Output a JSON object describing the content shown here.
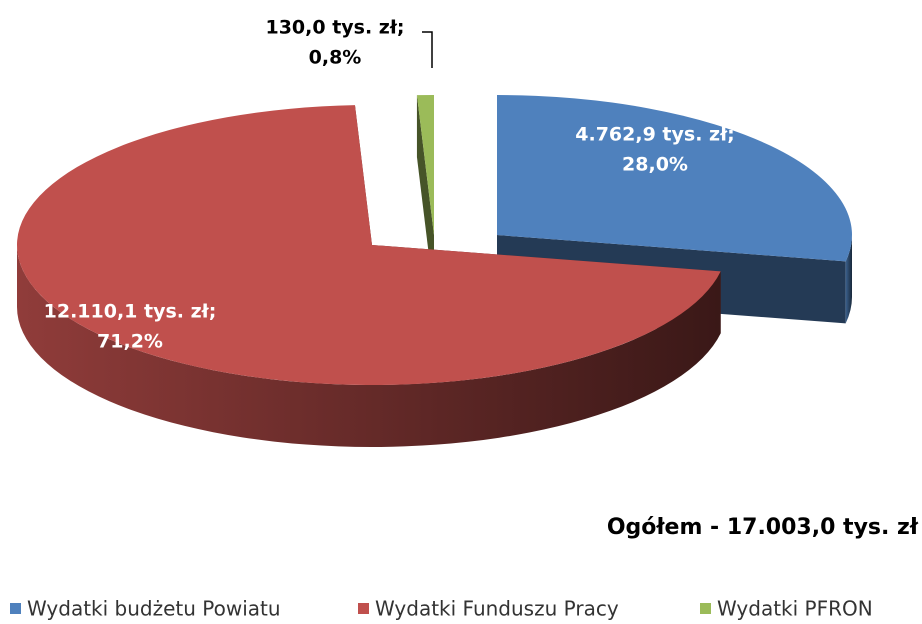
{
  "chart_data": {
    "type": "pie3d",
    "categories": [
      "Wydatki budżetu Powiatu",
      "Wydatki Funduszu Pracy",
      "Wydatki PFRON"
    ],
    "values": [
      4762.9,
      12110.1,
      130.0
    ],
    "value_labels": [
      "4.762,9 tys. zł;",
      "12.110,1 tys. zł;",
      "130,0 tys. zł;"
    ],
    "percents": [
      28.0,
      71.2,
      0.8
    ],
    "percent_labels": [
      "28,0%",
      "71,2%",
      "0,8%"
    ],
    "colors": [
      "#4f81bd",
      "#c0504d",
      "#9bbb59"
    ],
    "annotation": "Ogółem - 17.003,0 tys. zł",
    "legend": "bottom"
  }
}
